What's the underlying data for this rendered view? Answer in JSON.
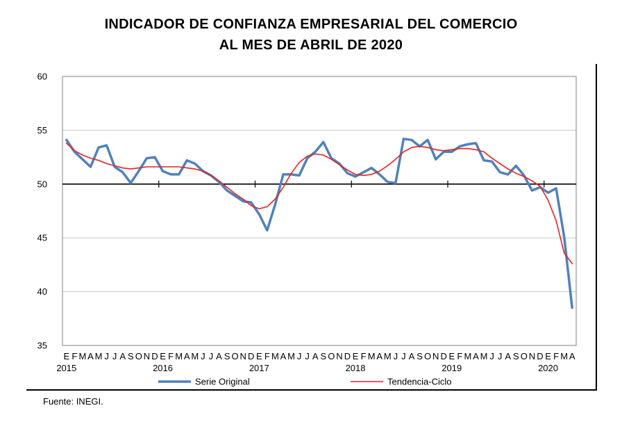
{
  "title": {
    "line1": "INDICADOR DE CONFIANZA EMPRESARIAL DEL COMERCIO",
    "line2": "AL MES DE ABRIL DE 2020"
  },
  "source": "Fuente: INEGI.",
  "colors": {
    "original": "#4f81bd",
    "tendencia": "#e8201f"
  },
  "chart_data": {
    "type": "line",
    "title": "INDICADOR DE CONFIANZA EMPRESARIAL DEL COMERCIO AL MES DE ABRIL DE 2020",
    "ylim": [
      35,
      60
    ],
    "yticks": [
      35,
      40,
      45,
      50,
      55,
      60
    ],
    "grid": true,
    "legend": "bottom",
    "month_labels": "EFMAMJJASOND",
    "years": [
      {
        "label": "2015",
        "months": 12
      },
      {
        "label": "2016",
        "months": 12
      },
      {
        "label": "2017",
        "months": 12
      },
      {
        "label": "2018",
        "months": 12
      },
      {
        "label": "2019",
        "months": 12
      },
      {
        "label": "2020",
        "months": 4
      }
    ],
    "series": [
      {
        "name": "Serie  Original",
        "values": [
          54.1,
          53.0,
          52.3,
          51.6,
          53.4,
          53.6,
          51.6,
          51.1,
          50.1,
          51.2,
          52.4,
          52.5,
          51.2,
          50.9,
          50.9,
          52.2,
          51.9,
          51.2,
          50.8,
          50.2,
          49.4,
          48.9,
          48.4,
          48.3,
          47.2,
          45.7,
          48.1,
          50.9,
          50.9,
          50.8,
          52.4,
          53.0,
          53.9,
          52.4,
          51.9,
          51.0,
          50.7,
          51.1,
          51.5,
          50.9,
          50.2,
          50.1,
          54.2,
          54.1,
          53.5,
          54.1,
          52.3,
          53.0,
          53.0,
          53.5,
          53.7,
          53.8,
          52.2,
          52.1,
          51.1,
          50.9,
          51.7,
          50.8,
          49.4,
          49.7,
          49.2,
          49.6,
          45.1,
          38.5
        ]
      },
      {
        "name": "Tendencia-Ciclo",
        "values": [
          53.8,
          53.1,
          52.7,
          52.4,
          52.2,
          51.9,
          51.7,
          51.5,
          51.4,
          51.5,
          51.6,
          51.6,
          51.6,
          51.6,
          51.6,
          51.5,
          51.4,
          51.2,
          50.8,
          50.3,
          49.7,
          49.1,
          48.6,
          48.0,
          47.7,
          47.9,
          48.6,
          49.7,
          51.0,
          52.0,
          52.6,
          52.8,
          52.7,
          52.3,
          51.8,
          51.3,
          50.9,
          50.8,
          50.9,
          51.2,
          51.7,
          52.3,
          53.0,
          53.4,
          53.5,
          53.4,
          53.2,
          53.1,
          53.2,
          53.3,
          53.3,
          53.2,
          53.0,
          52.4,
          51.9,
          51.4,
          51.0,
          50.7,
          50.3,
          49.8,
          48.5,
          46.6,
          43.6,
          42.6
        ]
      }
    ]
  }
}
